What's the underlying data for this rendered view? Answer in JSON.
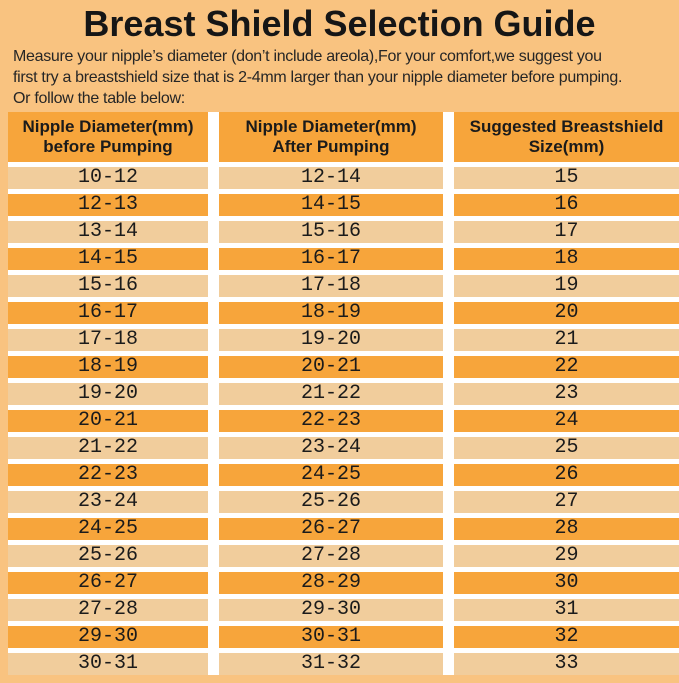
{
  "page": {
    "title": "Breast Shield Selection Guide",
    "intro": "Measure your nipple’s diameter   (don’t include areola),For your comfort,we suggest you\nfirst try a breastshield size that is 2-4mm larger than your nipple diameter before pumping.\nOr follow the table below:"
  },
  "colors": {
    "page_bg": "#F9C380",
    "header_bg": "#F7A53B",
    "row_dark_bg": "#F7A53B",
    "row_light_bg": "#F1CD9C",
    "separator": "#FFFFFF",
    "text": "#1B1B1B"
  },
  "table": {
    "headers": [
      "Nipple Diameter(mm)\nbefore Pumping",
      "Nipple Diameter(mm)\nAfter Pumping",
      "Suggested Breastshield\nSize(mm)"
    ],
    "rows": [
      [
        "10-12",
        "12-14",
        "15"
      ],
      [
        "12-13",
        "14-15",
        "16"
      ],
      [
        "13-14",
        "15-16",
        "17"
      ],
      [
        "14-15",
        "16-17",
        "18"
      ],
      [
        "15-16",
        "17-18",
        "19"
      ],
      [
        "16-17",
        "18-19",
        "20"
      ],
      [
        "17-18",
        "19-20",
        "21"
      ],
      [
        "18-19",
        "20-21",
        "22"
      ],
      [
        "19-20",
        "21-22",
        "23"
      ],
      [
        "20-21",
        "22-23",
        "24"
      ],
      [
        "21-22",
        "23-24",
        "25"
      ],
      [
        "22-23",
        "24-25",
        "26"
      ],
      [
        "23-24",
        "25-26",
        "27"
      ],
      [
        "24-25",
        "26-27",
        "28"
      ],
      [
        "25-26",
        "27-28",
        "29"
      ],
      [
        "26-27",
        "28-29",
        "30"
      ],
      [
        "27-28",
        "29-30",
        "31"
      ],
      [
        "29-30",
        "30-31",
        "32"
      ],
      [
        "30-31",
        "31-32",
        "33"
      ]
    ]
  }
}
